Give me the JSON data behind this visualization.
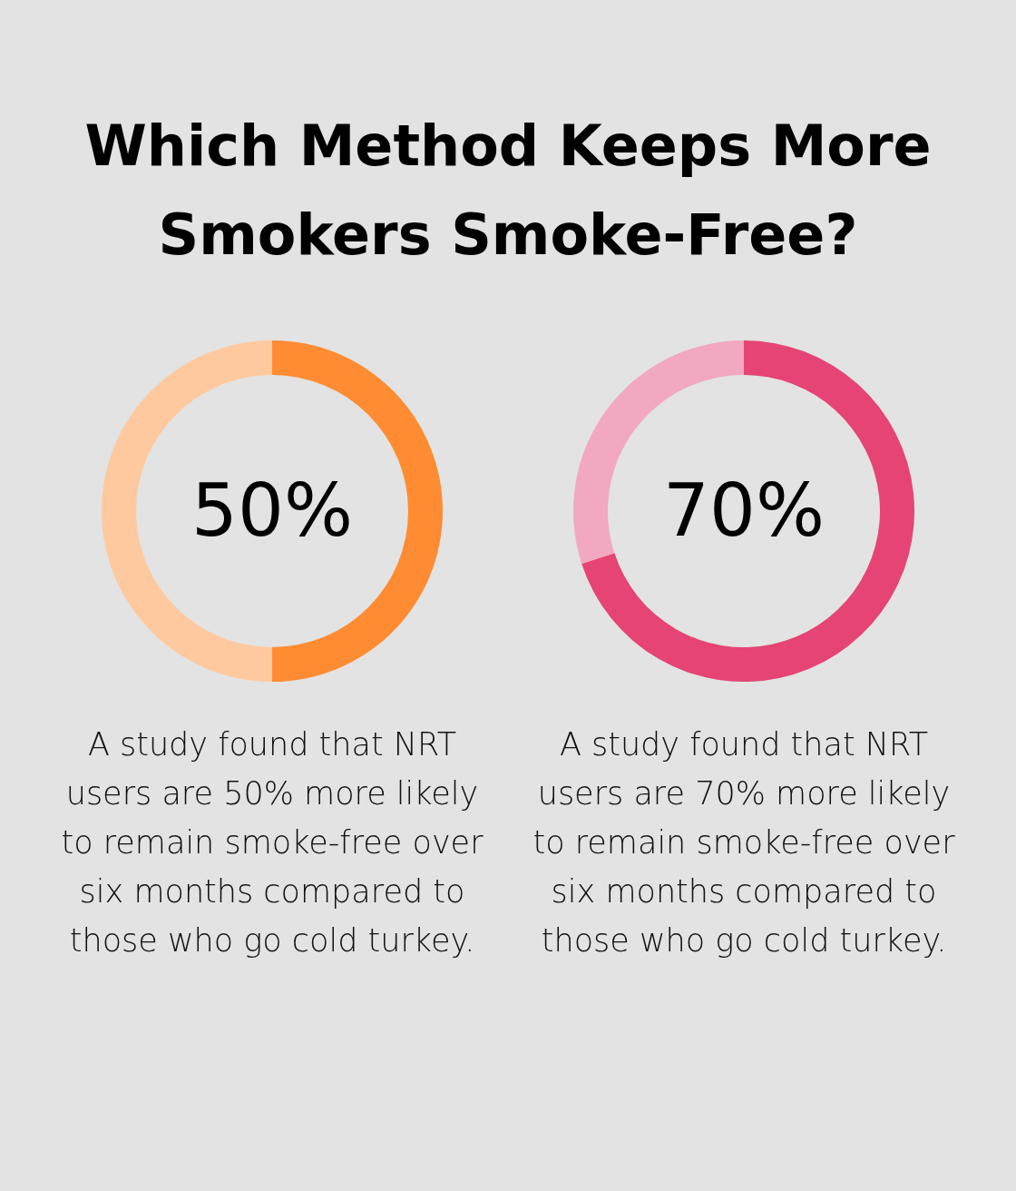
{
  "chart_data": [
    {
      "type": "donut",
      "title": "Which Method Keeps More Smokers Smoke-Free?",
      "categories": [
        null,
        null
      ],
      "values": [
        50,
        50
      ],
      "colors": [
        "#ff8c33",
        "#ffc9a0"
      ],
      "annotations": [
        "50%",
        "A study found that NRT users are 50% more likely to remain smoke-free over six months compared to those who go cold turkey."
      ]
    },
    {
      "type": "donut",
      "categories": [
        null,
        null
      ],
      "values": [
        70,
        30
      ],
      "colors": [
        "#e54474",
        "#f2a8c0"
      ],
      "annotations": [
        "70%",
        "A study found that NRT users are 70% more likely to remain smoke-free over six months compared to those who go cold turkey."
      ]
    }
  ]
}
